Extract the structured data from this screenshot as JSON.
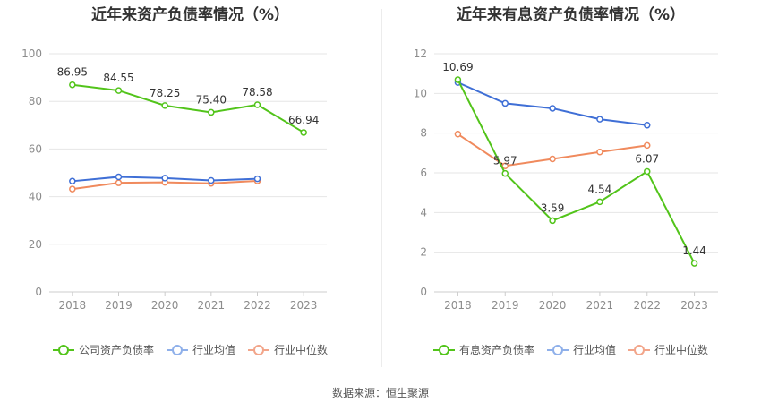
{
  "charts": [
    {
      "title": "近年来资产负债率情况（%）",
      "legend": [
        {
          "label": "公司资产负债率",
          "color": "#52c41a"
        },
        {
          "label": "行业均值",
          "color": "#8fb0ea"
        },
        {
          "label": "行业中位数",
          "color": "#f2a58a"
        }
      ]
    },
    {
      "title": "近年来有息资产负债率情况（%）",
      "legend": [
        {
          "label": "有息资产负债率",
          "color": "#52c41a"
        },
        {
          "label": "行业均值",
          "color": "#8fb0ea"
        },
        {
          "label": "行业中位数",
          "color": "#f2a58a"
        }
      ]
    }
  ],
  "source": "数据来源：恒生聚源",
  "chart_data": [
    {
      "type": "line",
      "title": "近年来资产负债率情况（%）",
      "categories": [
        "2018",
        "2019",
        "2020",
        "2021",
        "2022",
        "2023"
      ],
      "ylim": [
        0,
        100
      ],
      "yticks": [
        0,
        20,
        40,
        60,
        80,
        100
      ],
      "grid": true,
      "legend_position": "bottom",
      "series": [
        {
          "name": "公司资产负债率",
          "color": "#52c41a",
          "labeled": true,
          "values": [
            86.95,
            84.55,
            78.25,
            75.4,
            78.58,
            66.94
          ],
          "labels": [
            "86.95",
            "84.55",
            "78.25",
            "75.40",
            "78.58",
            "66.94"
          ]
        },
        {
          "name": "行业均值",
          "color": "#3f6fd6",
          "labeled": false,
          "values": [
            46.5,
            48.3,
            47.8,
            46.8,
            47.5,
            null
          ]
        },
        {
          "name": "行业中位数",
          "color": "#f08a5d",
          "labeled": false,
          "values": [
            43.2,
            45.8,
            46.0,
            45.6,
            46.6,
            null
          ]
        }
      ]
    },
    {
      "type": "line",
      "title": "近年来有息资产负债率情况（%）",
      "categories": [
        "2018",
        "2019",
        "2020",
        "2021",
        "2022",
        "2023"
      ],
      "ylim": [
        0,
        12
      ],
      "yticks": [
        0,
        2,
        4,
        6,
        8,
        10,
        12
      ],
      "grid": true,
      "legend_position": "bottom",
      "series": [
        {
          "name": "有息资产负债率",
          "color": "#52c41a",
          "labeled": true,
          "values": [
            10.69,
            5.97,
            3.59,
            4.54,
            6.07,
            1.44
          ],
          "labels": [
            "10.69",
            "5.97",
            "3.59",
            "4.54",
            "6.07",
            "1.44"
          ]
        },
        {
          "name": "行业均值",
          "color": "#3f6fd6",
          "labeled": false,
          "values": [
            10.55,
            9.5,
            9.25,
            8.7,
            8.4,
            null
          ]
        },
        {
          "name": "行业中位数",
          "color": "#f08a5d",
          "labeled": false,
          "values": [
            7.95,
            6.35,
            6.7,
            7.05,
            7.38,
            null
          ]
        }
      ]
    }
  ]
}
